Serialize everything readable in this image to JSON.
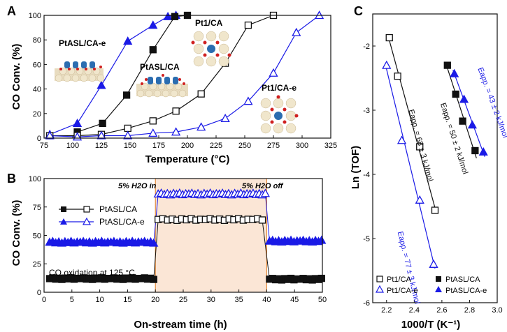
{
  "colors": {
    "black": "#111111",
    "blue": "#1a1ae6",
    "shade": "#fbe6d6",
    "annot_orange": "#e07b20"
  },
  "chart_data": [
    {
      "panel": "A",
      "type": "line",
      "xlabel": "Temperature (°C)",
      "ylabel": "CO Conv. (%)",
      "xlim": [
        75,
        325
      ],
      "ylim": [
        0,
        100
      ],
      "xticks": [
        75,
        100,
        125,
        150,
        175,
        200,
        225,
        250,
        275,
        300,
        325
      ],
      "yticks": [
        0,
        20,
        40,
        60,
        80,
        100
      ],
      "series": [
        {
          "name": "PtASL/CA-e",
          "color": "blue",
          "marker": "triangle",
          "filled": true,
          "x": [
            80,
            104,
            125,
            148,
            170,
            183,
            190
          ],
          "y": [
            3,
            12,
            43,
            79,
            92,
            99,
            100
          ]
        },
        {
          "name": "PtASL/CA",
          "color": "black",
          "marker": "square",
          "filled": true,
          "x": [
            104,
            126,
            147,
            170,
            189,
            200
          ],
          "y": [
            5,
            12,
            35,
            72,
            99,
            100
          ]
        },
        {
          "name": "Pt1/CA",
          "color": "black",
          "marker": "square",
          "filled": false,
          "x": [
            80,
            104,
            125,
            148,
            170,
            190,
            212,
            233,
            253,
            275
          ],
          "y": [
            2,
            2,
            3,
            8,
            14,
            22,
            36,
            61,
            92,
            100
          ]
        },
        {
          "name": "Pt1/CA-e",
          "color": "blue",
          "marker": "triangle",
          "filled": false,
          "x": [
            80,
            104,
            125,
            148,
            170,
            190,
            212,
            233,
            253,
            275,
            295,
            315
          ],
          "y": [
            2,
            1,
            2,
            2,
            4,
            5,
            9,
            16,
            30,
            53,
            86,
            100
          ]
        }
      ],
      "labels": {
        "ptasl_cae": "PtASL/CA-e",
        "ptasl_ca": "PtASL/CA",
        "pt1_ca": "Pt1/CA",
        "pt1_cae": "Pt1/CA-e"
      }
    },
    {
      "panel": "B",
      "type": "line",
      "xlabel": "On-stream time (h)",
      "ylabel": "CO Conv. (%)",
      "xlim": [
        0,
        50
      ],
      "ylim": [
        0,
        100
      ],
      "xticks": [
        0,
        5,
        10,
        15,
        20,
        25,
        30,
        35,
        40,
        45,
        50
      ],
      "yticks": [
        0,
        25,
        50,
        75,
        100
      ],
      "shaded_range": [
        20,
        40
      ],
      "annotations": {
        "on": "5% H2O in",
        "off": "5% H2O off",
        "condition": "CO oxidation at 125 °C"
      },
      "legend": [
        "PtASL/CA",
        "PtASL/CA-e"
      ],
      "series": [
        {
          "name": "PtASL/CA",
          "color": "black",
          "segments": [
            {
              "x0": 1,
              "x1": 20,
              "level": 12,
              "marker": "square",
              "filled": true
            },
            {
              "x0": 20.5,
              "x1": 40,
              "level": 64,
              "marker": "square",
              "filled": false
            },
            {
              "x0": 40.5,
              "x1": 50,
              "level": 11.5,
              "marker": "square",
              "filled": true
            }
          ]
        },
        {
          "name": "PtASL/CA-e",
          "color": "blue",
          "segments": [
            {
              "x0": 1,
              "x1": 20,
              "level": 44,
              "marker": "triangle",
              "filled": true
            },
            {
              "x0": 20.5,
              "x1": 40,
              "level": 86.5,
              "marker": "triangle",
              "filled": false
            },
            {
              "x0": 40.5,
              "x1": 50,
              "level": 45,
              "marker": "triangle",
              "filled": true
            }
          ]
        }
      ]
    },
    {
      "panel": "C",
      "type": "scatter",
      "xlabel": "1000/T (K⁻¹)",
      "ylabel": "Ln (TOF)",
      "xlim": [
        2.1,
        3.0
      ],
      "ylim": [
        -6,
        -1.5
      ],
      "xticks": [
        2.2,
        2.4,
        2.6,
        2.8,
        3.0
      ],
      "yticks": [
        -6,
        -5,
        -4,
        -3,
        -2
      ],
      "series": [
        {
          "name": "Pt1/CA",
          "color": "black",
          "marker": "square",
          "filled": false,
          "x": [
            2.22,
            2.28,
            2.44,
            2.55
          ],
          "y": [
            -1.87,
            -2.47,
            -3.57,
            -4.56
          ],
          "label": "Eapp. = 68 ± 3 kJ/mol"
        },
        {
          "name": "PtASL/CA",
          "color": "black",
          "marker": "square",
          "filled": true,
          "x": [
            2.64,
            2.7,
            2.75,
            2.84
          ],
          "y": [
            -2.3,
            -2.75,
            -3.17,
            -3.63
          ],
          "label": "Eapp. = 50 ± 2 kJ/mol"
        },
        {
          "name": "Pt1/CA-e",
          "color": "blue",
          "marker": "triangle",
          "filled": false,
          "x": [
            2.2,
            2.31,
            2.44,
            2.54
          ],
          "y": [
            -2.3,
            -3.47,
            -4.4,
            -5.4
          ],
          "label": "Eapp. = 77 ± 3 kJ/mol"
        },
        {
          "name": "PtASL/CA-e",
          "color": "blue",
          "marker": "triangle",
          "filled": true,
          "x": [
            2.69,
            2.76,
            2.82,
            2.9
          ],
          "y": [
            -2.43,
            -2.83,
            -3.23,
            -3.65
          ],
          "label": "Eapp. = 43 ± 2 kJ/mol"
        }
      ],
      "legend": [
        "Pt1/CA",
        "PtASL/CA",
        "Pt1/CA-e",
        "PtASL/CA-e"
      ]
    }
  ],
  "panel_letters": {
    "a": "A",
    "b": "B",
    "c": "C"
  }
}
